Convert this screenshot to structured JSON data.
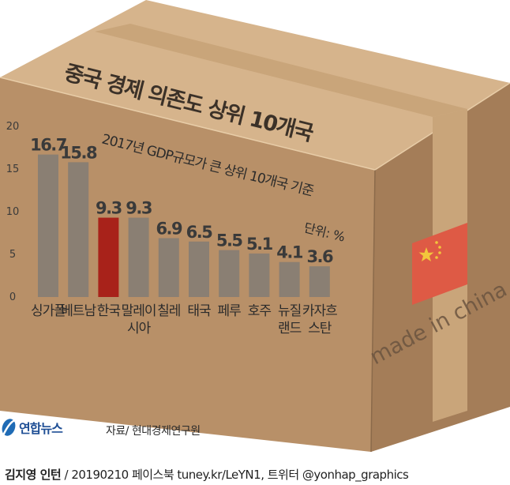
{
  "chart_data": {
    "type": "bar",
    "title": "중국 경제 의존도 상위 10개국",
    "subtitle": "2017년 GDP규모가 큰 상위 10개국 기준",
    "unit_label": "단위: %",
    "categories": [
      [
        "싱가폴"
      ],
      [
        "베트남"
      ],
      [
        "한국"
      ],
      [
        "말레이",
        "시아"
      ],
      [
        "칠레"
      ],
      [
        "태국"
      ],
      [
        "페루"
      ],
      [
        "호주"
      ],
      [
        "뉴질",
        "랜드"
      ],
      [
        "카자흐",
        "스탄"
      ]
    ],
    "values": [
      16.7,
      15.8,
      9.3,
      9.3,
      6.9,
      6.5,
      5.5,
      5.1,
      4.1,
      3.6
    ],
    "value_labels": [
      "16.7",
      "15.8",
      "9.3",
      "9.3",
      "6.9",
      "6.5",
      "5.5",
      "5.1",
      "4.1",
      "3.6"
    ],
    "highlight_index": 2,
    "y_ticks": [
      "0",
      "5",
      "10",
      "15",
      "20"
    ],
    "ylim": [
      0,
      20
    ],
    "grid": false,
    "legend": "none"
  },
  "colors": {
    "bar": "#8a7f73",
    "highlight": "#a8221a",
    "box_front": "#b89068",
    "box_top": "#d6b48c",
    "box_side": "#a47d58",
    "tape": "#c9a57a",
    "flag_red": "#de5a45",
    "flag_star": "#f2c63c"
  },
  "box_stamp": "made in china",
  "logo": {
    "name": "연합뉴스"
  },
  "source": "자료/ 현대경제연구원",
  "credit": {
    "author": "김지영 인턴",
    "rest": " / 20190210  페이스북 tuney.kr/LeYN1, 트위터 @yonhap_graphics"
  }
}
